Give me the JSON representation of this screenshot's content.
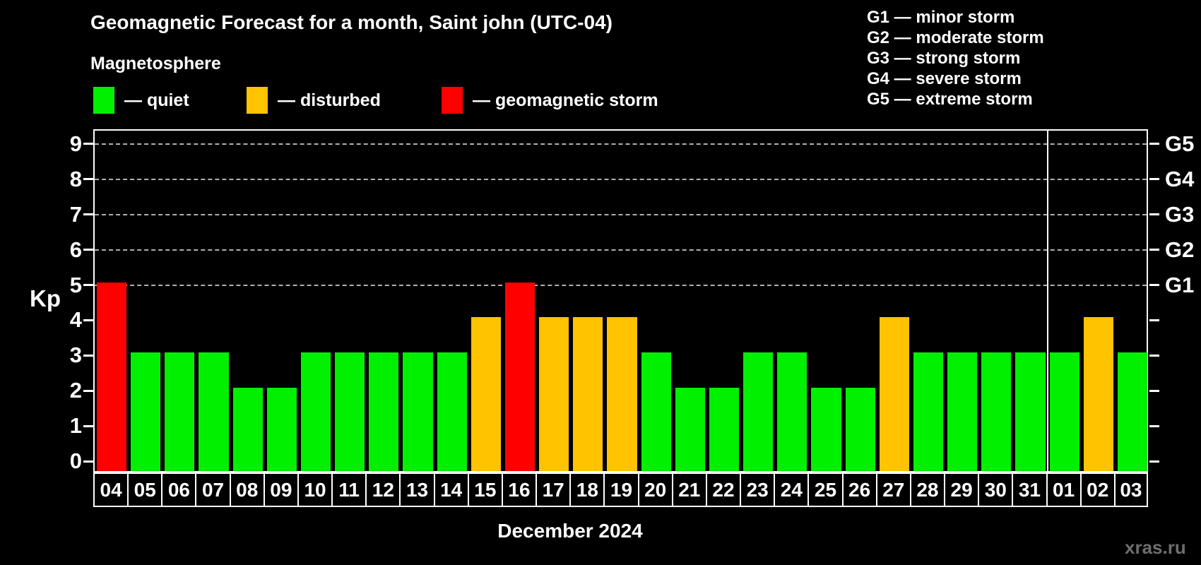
{
  "title": "Geomagnetic Forecast for a month, Saint john (UTC-04)",
  "subtitle": "Magnetosphere",
  "legend": {
    "items": [
      {
        "key": "quiet",
        "label": "— quiet",
        "color": "#00f000",
        "x": 132
      },
      {
        "key": "disturbed",
        "label": "— disturbed",
        "color": "#ffc300",
        "x": 349
      },
      {
        "key": "storm",
        "label": "— geomagnetic storm",
        "color": "#ff0000",
        "x": 625
      }
    ]
  },
  "g_legend": {
    "lines": [
      "G1 — minor storm",
      "G2 — moderate storm",
      "G3 — strong storm",
      "G4 — severe storm",
      "G5 — extreme storm"
    ]
  },
  "axes": {
    "y_label": "Kp",
    "y_ticks": [
      0,
      1,
      2,
      3,
      4,
      5,
      6,
      7,
      8,
      9
    ],
    "right_labels": [
      {
        "label": "G1",
        "kp": 5
      },
      {
        "label": "G2",
        "kp": 6
      },
      {
        "label": "G3",
        "kp": 7
      },
      {
        "label": "G4",
        "kp": 8
      },
      {
        "label": "G5",
        "kp": 9
      }
    ]
  },
  "chart_data": {
    "type": "bar",
    "title": "Geomagnetic Forecast for a month, Saint john (UTC-04)",
    "xlabel": "December 2024",
    "ylabel": "Kp",
    "ylim": [
      0,
      9.4
    ],
    "grid": "dashed horizontal lines at Kp 5-9 (G1-G5)",
    "categories": [
      "04",
      "05",
      "06",
      "07",
      "08",
      "09",
      "10",
      "11",
      "12",
      "13",
      "14",
      "15",
      "16",
      "17",
      "18",
      "19",
      "20",
      "21",
      "22",
      "23",
      "24",
      "25",
      "26",
      "27",
      "28",
      "29",
      "30",
      "31",
      "01",
      "02",
      "03"
    ],
    "values": [
      5,
      3,
      3,
      3,
      2,
      2,
      3,
      3,
      3,
      3,
      3,
      4,
      5,
      4,
      4,
      4,
      3,
      2,
      2,
      3,
      3,
      2,
      2,
      4,
      3,
      3,
      3,
      3,
      3,
      4,
      3
    ],
    "gridlines_kp": [
      5,
      6,
      7,
      8,
      9
    ],
    "color_rule": {
      "quiet_max": 3,
      "disturbed": 4,
      "storm_min": 5
    },
    "colors": {
      "quiet": "#00f000",
      "disturbed": "#ffc300",
      "storm": "#ff0000"
    },
    "month_boundary_after_index": 27,
    "month_label": "December 2024"
  },
  "watermark": "xras.ru"
}
